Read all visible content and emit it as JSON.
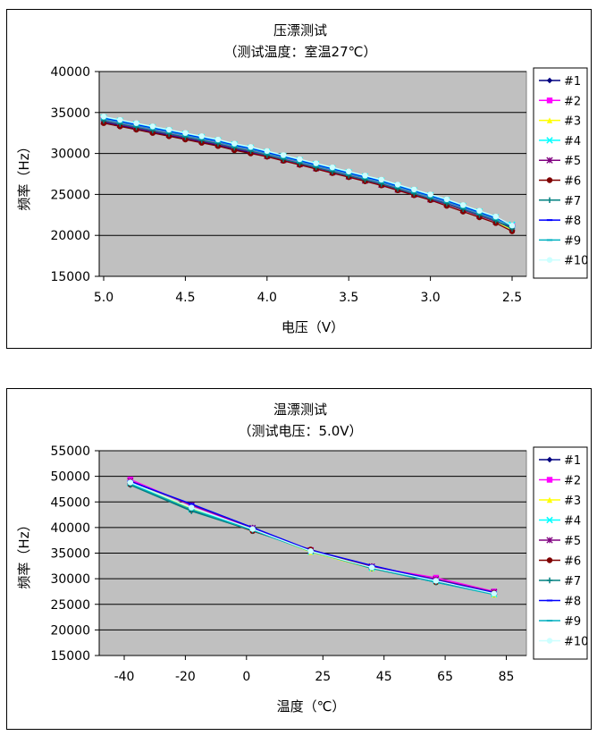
{
  "chart_data": [
    {
      "type": "line",
      "title": "压漂测试",
      "subtitle": "（测试温度：室温27℃）",
      "xlabel": "电压（V）",
      "ylabel": "频率（Hz）",
      "ylim": [
        15000,
        40000
      ],
      "yticks": [
        15000,
        20000,
        25000,
        30000,
        35000,
        40000
      ],
      "xlim": [
        5.0,
        2.5
      ],
      "xticks": [
        5.0,
        4.5,
        4.0,
        3.5,
        3.0,
        2.5
      ],
      "xtick_labels": [
        "5.0",
        "4.5",
        "4.0",
        "3.5",
        "3.0",
        "2.5"
      ],
      "grid": true,
      "legend_position": "right",
      "x": [
        5.0,
        4.9,
        4.8,
        4.7,
        4.6,
        4.5,
        4.4,
        4.3,
        4.2,
        4.1,
        4.0,
        3.9,
        3.8,
        3.7,
        3.6,
        3.5,
        3.4,
        3.3,
        3.2,
        3.1,
        3.0,
        2.9,
        2.8,
        2.7,
        2.6,
        2.5
      ],
      "series": [
        {
          "name": "#1",
          "color": "#000080",
          "marker": "diamond",
          "values": [
            33800,
            33400,
            33000,
            32600,
            32200,
            31800,
            31400,
            31000,
            30500,
            30100,
            29700,
            29200,
            28700,
            28200,
            27700,
            27200,
            26700,
            26200,
            25600,
            25000,
            24400,
            23800,
            23100,
            22400,
            21700,
            21000
          ]
        },
        {
          "name": "#2",
          "color": "#FF00FF",
          "marker": "square",
          "values": [
            34100,
            33700,
            33300,
            32900,
            32500,
            32100,
            31700,
            31300,
            30800,
            30400,
            29900,
            29400,
            28900,
            28400,
            27900,
            27400,
            26900,
            26400,
            25800,
            25200,
            24600,
            24000,
            23300,
            22600,
            21900,
            21200
          ]
        },
        {
          "name": "#3",
          "color": "#FFFF00",
          "marker": "triangle",
          "values": [
            34000,
            33600,
            33200,
            32800,
            32400,
            32000,
            31600,
            31200,
            30700,
            30300,
            29800,
            29300,
            28800,
            28300,
            27800,
            27300,
            26800,
            26300,
            25700,
            25100,
            24500,
            23800,
            23100,
            22400,
            21700,
            20700
          ]
        },
        {
          "name": "#4",
          "color": "#00FFFF",
          "marker": "x",
          "values": [
            34400,
            34000,
            33600,
            33200,
            32800,
            32400,
            32000,
            31600,
            31100,
            30700,
            30200,
            29700,
            29200,
            28700,
            28200,
            27700,
            27200,
            26700,
            26100,
            25500,
            24900,
            24300,
            23600,
            22900,
            22200,
            21300
          ]
        },
        {
          "name": "#5",
          "color": "#800080",
          "marker": "star",
          "values": [
            33900,
            33500,
            33100,
            32700,
            32300,
            31900,
            31500,
            31100,
            30600,
            30200,
            29700,
            29200,
            28700,
            28200,
            27700,
            27200,
            26700,
            26200,
            25600,
            25000,
            24400,
            23800,
            23100,
            22400,
            21700,
            20900
          ]
        },
        {
          "name": "#6",
          "color": "#800000",
          "marker": "circle",
          "values": [
            33700,
            33300,
            32900,
            32500,
            32100,
            31700,
            31300,
            30900,
            30400,
            30000,
            29600,
            29100,
            28600,
            28100,
            27600,
            27100,
            26600,
            26100,
            25500,
            24900,
            24300,
            23600,
            22900,
            22200,
            21500,
            20500
          ]
        },
        {
          "name": "#7",
          "color": "#008080",
          "marker": "plus",
          "values": [
            34000,
            33600,
            33200,
            32800,
            32400,
            32000,
            31600,
            31200,
            30700,
            30300,
            29800,
            29300,
            28800,
            28300,
            27800,
            27300,
            26800,
            26300,
            25700,
            25100,
            24500,
            23900,
            23200,
            22500,
            21800,
            20800
          ]
        },
        {
          "name": "#8",
          "color": "#0000FF",
          "marker": "dash",
          "values": [
            34300,
            33900,
            33500,
            33100,
            32700,
            32300,
            31900,
            31500,
            31000,
            30600,
            30100,
            29600,
            29100,
            28600,
            28100,
            27600,
            27100,
            26600,
            26000,
            25400,
            24800,
            24200,
            23500,
            22800,
            22100,
            21200
          ]
        },
        {
          "name": "#9",
          "color": "#00B0C0",
          "marker": "dash",
          "values": [
            34200,
            33800,
            33400,
            33000,
            32600,
            32200,
            31800,
            31400,
            30900,
            30500,
            30000,
            29500,
            29000,
            28500,
            28000,
            27500,
            27000,
            26500,
            25900,
            25300,
            24700,
            24100,
            23400,
            22700,
            22000,
            21100
          ]
        },
        {
          "name": "#10",
          "color": "#CCFFFF",
          "marker": "circle",
          "values": [
            34500,
            34100,
            33700,
            33300,
            32900,
            32500,
            32100,
            31700,
            31200,
            30800,
            30300,
            29800,
            29300,
            28800,
            28300,
            27800,
            27300,
            26800,
            26200,
            25600,
            25000,
            24400,
            23700,
            23000,
            22300,
            21200
          ]
        }
      ]
    },
    {
      "type": "line",
      "title": "温漂测试",
      "subtitle": "（测试电压：5.0V）",
      "xlabel": "温度（℃）",
      "ylabel": "频率（Hz）",
      "ylim": [
        15000,
        55000
      ],
      "yticks": [
        15000,
        20000,
        25000,
        30000,
        35000,
        40000,
        45000,
        50000,
        55000
      ],
      "categories": [
        "-40",
        "-20",
        "0",
        "25",
        "45",
        "65",
        "85"
      ],
      "grid": true,
      "legend_position": "right",
      "series": [
        {
          "name": "#1",
          "color": "#000080",
          "marker": "diamond",
          "points": [
            [
              -38,
              49000
            ],
            [
              -18,
              44500
            ],
            [
              2,
              40000
            ],
            [
              21,
              35500
            ],
            [
              41,
              32500
            ],
            [
              62,
              29800
            ],
            [
              81,
              27400
            ]
          ]
        },
        {
          "name": "#2",
          "color": "#FF00FF",
          "marker": "square",
          "points": [
            [
              -38,
              49400
            ],
            [
              -18,
              44300
            ],
            [
              2,
              39800
            ],
            [
              21,
              35600
            ],
            [
              41,
              32300
            ],
            [
              62,
              30200
            ],
            [
              81,
              27500
            ]
          ]
        },
        {
          "name": "#3",
          "color": "#FFFF00",
          "marker": "triangle",
          "points": [
            [
              -38,
              48700
            ],
            [
              -18,
              43600
            ],
            [
              2,
              39600
            ],
            [
              21,
              35200
            ],
            [
              41,
              32000
            ],
            [
              62,
              29400
            ],
            [
              81,
              26900
            ]
          ]
        },
        {
          "name": "#4",
          "color": "#00FFFF",
          "marker": "x",
          "points": [
            [
              -38,
              48600
            ],
            [
              -18,
              43500
            ],
            [
              2,
              39800
            ],
            [
              21,
              35300
            ],
            [
              41,
              32100
            ],
            [
              62,
              29500
            ],
            [
              81,
              27000
            ]
          ]
        },
        {
          "name": "#5",
          "color": "#800080",
          "marker": "star",
          "points": [
            [
              -38,
              49100
            ],
            [
              -18,
              44400
            ],
            [
              2,
              39900
            ],
            [
              21,
              35500
            ],
            [
              41,
              32400
            ],
            [
              62,
              29900
            ],
            [
              81,
              27400
            ]
          ]
        },
        {
          "name": "#6",
          "color": "#800000",
          "marker": "circle",
          "points": [
            [
              -38,
              48400
            ],
            [
              -18,
              43400
            ],
            [
              2,
              39300
            ],
            [
              21,
              35700
            ],
            [
              41,
              32200
            ],
            [
              62,
              29300
            ],
            [
              81,
              27200
            ]
          ]
        },
        {
          "name": "#7",
          "color": "#008080",
          "marker": "plus",
          "points": [
            [
              -38,
              48300
            ],
            [
              -18,
              43200
            ],
            [
              2,
              39400
            ],
            [
              21,
              35400
            ],
            [
              41,
              32000
            ],
            [
              62,
              29300
            ],
            [
              81,
              27000
            ]
          ]
        },
        {
          "name": "#8",
          "color": "#0000FF",
          "marker": "dash",
          "points": [
            [
              -38,
              49000
            ],
            [
              -18,
              44600
            ],
            [
              2,
              40000
            ],
            [
              21,
              35600
            ],
            [
              41,
              32600
            ],
            [
              62,
              29700
            ],
            [
              81,
              27300
            ]
          ]
        },
        {
          "name": "#9",
          "color": "#00B0C0",
          "marker": "dash",
          "points": [
            [
              -38,
              48500
            ],
            [
              -18,
              43500
            ],
            [
              2,
              39500
            ],
            [
              21,
              35300
            ],
            [
              41,
              32100
            ],
            [
              62,
              29300
            ],
            [
              81,
              26900
            ]
          ]
        },
        {
          "name": "#10",
          "color": "#CCFFFF",
          "marker": "circle",
          "points": [
            [
              -38,
              48800
            ],
            [
              -18,
              43900
            ],
            [
              2,
              39700
            ],
            [
              21,
              35400
            ],
            [
              41,
              32200
            ],
            [
              62,
              29600
            ],
            [
              81,
              27100
            ]
          ]
        }
      ]
    }
  ]
}
